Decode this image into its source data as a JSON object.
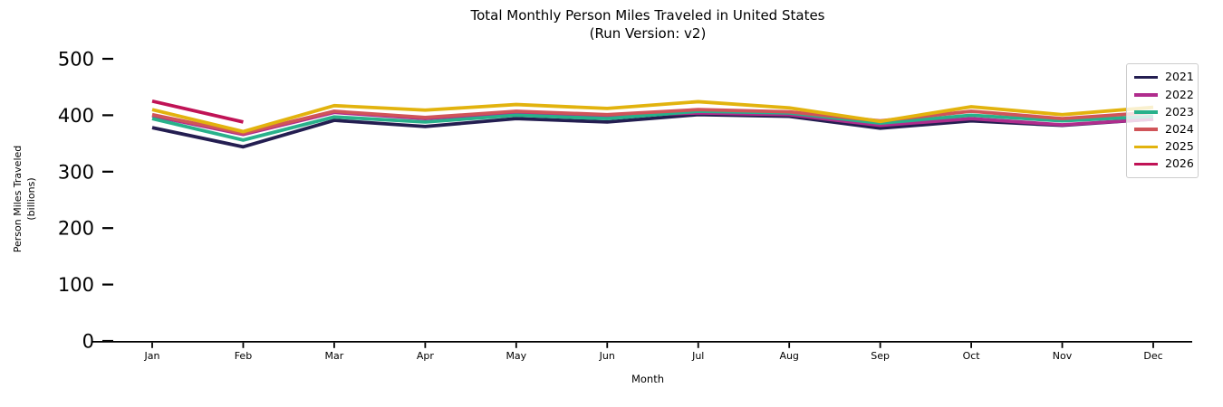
{
  "chart_data": {
    "type": "line",
    "title": "Total Monthly Person Miles Traveled in United States",
    "subtitle": "(Run Version: v2)",
    "xlabel": "Month",
    "ylabel_lines": [
      "Person Miles Traveled",
      "(billions)"
    ],
    "categories": [
      "Jan",
      "Feb",
      "Mar",
      "Apr",
      "May",
      "Jun",
      "Jul",
      "Aug",
      "Sep",
      "Oct",
      "Nov",
      "Dec"
    ],
    "yticks": [
      0,
      100,
      200,
      300,
      400,
      500
    ],
    "ylim": [
      0,
      530
    ],
    "grid": false,
    "legend_position": "upper right",
    "axis_color": "#000000",
    "series": [
      {
        "name": "2021",
        "color": "#241e51",
        "values": [
          378,
          344,
          391,
          380,
          394,
          388,
          401,
          398,
          377,
          390,
          382,
          393
        ]
      },
      {
        "name": "2022",
        "color": "#b02c8d",
        "values": [
          399,
          366,
          405,
          394,
          405,
          399,
          404,
          401,
          382,
          394,
          383,
          393
        ]
      },
      {
        "name": "2023",
        "color": "#28b18b",
        "values": [
          394,
          356,
          397,
          388,
          400,
          394,
          407,
          404,
          386,
          400,
          390,
          398
        ]
      },
      {
        "name": "2024",
        "color": "#d05459",
        "values": [
          401,
          368,
          407,
          396,
          407,
          401,
          410,
          406,
          390,
          407,
          394,
          405
        ]
      },
      {
        "name": "2025",
        "color": "#e2b30e",
        "values": [
          410,
          371,
          417,
          409,
          419,
          412,
          424,
          413,
          389,
          415,
          401,
          414
        ]
      },
      {
        "name": "2026",
        "color": "#c01356",
        "values": [
          425,
          388
        ]
      }
    ]
  }
}
